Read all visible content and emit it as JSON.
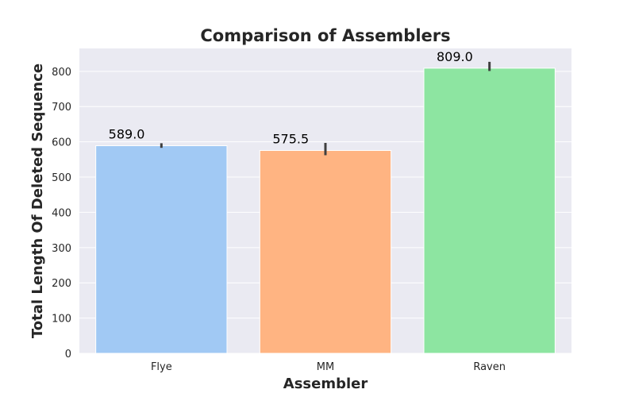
{
  "chart_data": {
    "type": "bar",
    "title": "Comparison of Assemblers",
    "xlabel": "Assembler",
    "ylabel": "Total Length Of Deleted Sequence",
    "categories": [
      "Flye",
      "MM",
      "Raven"
    ],
    "values": [
      589.0,
      575.5,
      809.0
    ],
    "value_labels": [
      "589.0",
      "575.5",
      "809.0"
    ],
    "error_bars": [
      [
        583,
        596
      ],
      [
        562,
        597
      ],
      [
        801,
        827
      ]
    ],
    "colors": [
      "#a1c9f4",
      "#ffb482",
      "#8de5a1"
    ],
    "ylim": [
      0,
      865
    ],
    "yticks": [
      0,
      100,
      200,
      300,
      400,
      500,
      600,
      700,
      800
    ],
    "ytick_labels": [
      "0",
      "100",
      "200",
      "300",
      "400",
      "500",
      "600",
      "700",
      "800"
    ],
    "grid": true,
    "background": "#eaeaf2",
    "gridline_color": "#ffffff",
    "errorbar_color": "#3f3f3f"
  }
}
